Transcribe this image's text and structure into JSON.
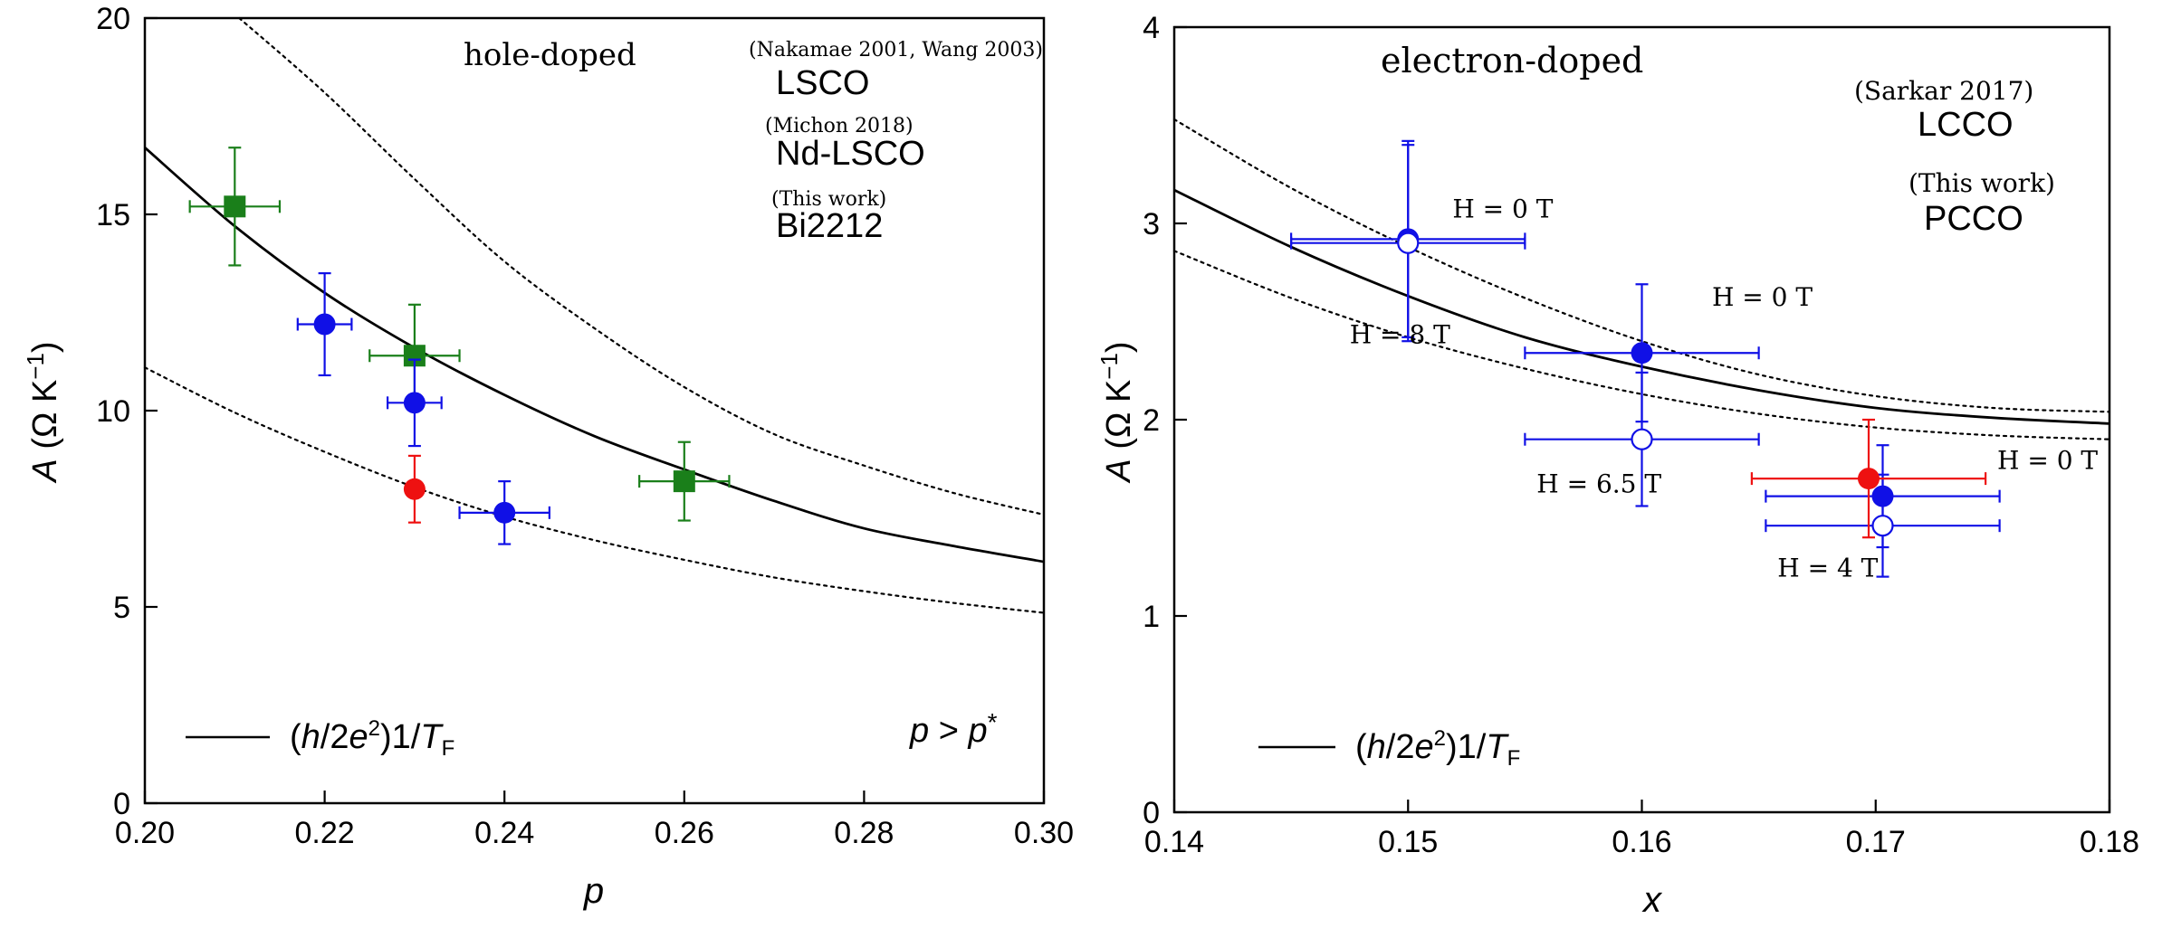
{
  "chart_data": [
    {
      "type": "scatter",
      "panel_label": "hole-doped",
      "xlabel": "p",
      "ylabel": "A (Ω K⁻¹)",
      "xlim": [
        0.2,
        0.3
      ],
      "ylim": [
        0,
        20
      ],
      "xticks": [
        "0.20",
        "0.22",
        "0.24",
        "0.26",
        "0.28",
        "0.30"
      ],
      "yticks": [
        "0",
        "5",
        "10",
        "15",
        "20"
      ],
      "legend_text": "(h/2e²)1/T_F",
      "annotation": "p > p*",
      "series": [
        {
          "name": "LSCO",
          "source": "(Nakamae 2001, Wang 2003)",
          "color": "#1a7f1a",
          "marker": "square",
          "points": [
            {
              "x": 0.21,
              "y": 15.2,
              "xerr": 0.005,
              "yerr": 1.5
            },
            {
              "x": 0.23,
              "y": 11.4,
              "xerr": 0.005,
              "yerr": 1.3
            },
            {
              "x": 0.26,
              "y": 8.2,
              "xerr": 0.005,
              "yerr": 1.0
            }
          ]
        },
        {
          "name": "Nd-LSCO",
          "source": "(Michon 2018)",
          "color": "#1010e6",
          "marker": "circle",
          "points": [
            {
              "x": 0.22,
              "y": 12.2,
              "xerr": 0.003,
              "yerr": 1.3
            },
            {
              "x": 0.23,
              "y": 10.2,
              "xerr": 0.003,
              "yerr": 1.1
            },
            {
              "x": 0.24,
              "y": 7.4,
              "xerr": 0.005,
              "yerr": 0.8
            }
          ]
        },
        {
          "name": "Bi2212",
          "source": "(This work)",
          "color": "#ee1111",
          "marker": "circle",
          "points": [
            {
              "x": 0.23,
              "y": 8.0,
              "xerr": 0,
              "yerr": 0.85
            }
          ]
        }
      ],
      "curves": {
        "solid": [
          [
            0.2,
            16.7
          ],
          [
            0.21,
            14.7
          ],
          [
            0.22,
            13.0
          ],
          [
            0.23,
            11.6
          ],
          [
            0.24,
            10.4
          ],
          [
            0.25,
            9.35
          ],
          [
            0.26,
            8.5
          ],
          [
            0.27,
            7.7
          ],
          [
            0.28,
            7.0
          ],
          [
            0.29,
            6.55
          ],
          [
            0.3,
            6.15
          ]
        ],
        "dotted_upper": [
          [
            0.2105,
            20.0
          ],
          [
            0.22,
            18.1
          ],
          [
            0.23,
            15.9
          ],
          [
            0.24,
            13.8
          ],
          [
            0.25,
            12.1
          ],
          [
            0.26,
            10.6
          ],
          [
            0.27,
            9.4
          ],
          [
            0.28,
            8.6
          ],
          [
            0.29,
            7.9
          ],
          [
            0.3,
            7.35
          ]
        ],
        "dotted_lower": [
          [
            0.2,
            11.1
          ],
          [
            0.21,
            9.95
          ],
          [
            0.22,
            8.95
          ],
          [
            0.23,
            8.05
          ],
          [
            0.24,
            7.3
          ],
          [
            0.25,
            6.7
          ],
          [
            0.26,
            6.2
          ],
          [
            0.27,
            5.75
          ],
          [
            0.28,
            5.4
          ],
          [
            0.29,
            5.1
          ],
          [
            0.3,
            4.85
          ]
        ]
      }
    },
    {
      "type": "scatter",
      "panel_label": "electron-doped",
      "xlabel": "x",
      "ylabel": "A (Ω K⁻¹)",
      "xlim": [
        0.14,
        0.18
      ],
      "ylim": [
        0,
        4
      ],
      "xticks": [
        "0.14",
        "0.15",
        "0.16",
        "0.17",
        "0.18"
      ],
      "yticks": [
        "0",
        "1",
        "2",
        "3",
        "4"
      ],
      "legend_text": "(h/2e²)1/T_F",
      "series": [
        {
          "name": "LCCO",
          "source": "(Sarkar 2017)",
          "color": "#1010e6",
          "points": [
            {
              "x": 0.15,
              "y": 2.92,
              "xerr": 0.005,
              "yerr": 0.5,
              "filled": true
            },
            {
              "x": 0.15,
              "y": 2.9,
              "xerr": 0.005,
              "yerr": 0.5,
              "filled": false
            },
            {
              "x": 0.16,
              "y": 2.34,
              "xerr": 0.005,
              "yerr": 0.35,
              "filled": true
            },
            {
              "x": 0.16,
              "y": 1.9,
              "xerr": 0.005,
              "yerr": 0.34,
              "filled": false
            },
            {
              "x": 0.1703,
              "y": 1.61,
              "xerr": 0.005,
              "yerr": 0.26,
              "filled": true
            },
            {
              "x": 0.1703,
              "y": 1.46,
              "xerr": 0.005,
              "yerr": 0.26,
              "filled": false
            }
          ]
        },
        {
          "name": "PCCO",
          "source": "(This work)",
          "color": "#ee1111",
          "points": [
            {
              "x": 0.1697,
              "y": 1.7,
              "xerr": 0.005,
              "yerr": 0.3,
              "filled": true
            }
          ]
        }
      ],
      "field_labels": [
        {
          "text": "H = 0 T",
          "x": 0.1519,
          "y": 3.03
        },
        {
          "text": "H = 8 T",
          "x": 0.1475,
          "y": 2.39
        },
        {
          "text": "H = 0 T",
          "x": 0.163,
          "y": 2.58
        },
        {
          "text": "H = 6.5 T",
          "x": 0.1555,
          "y": 1.63
        },
        {
          "text": "H = 0 T",
          "x": 0.1752,
          "y": 1.75
        },
        {
          "text": "H = 4 T",
          "x": 0.1658,
          "y": 1.2
        }
      ],
      "curves": {
        "solid": [
          [
            0.14,
            3.17
          ],
          [
            0.145,
            2.88
          ],
          [
            0.15,
            2.63
          ],
          [
            0.155,
            2.42
          ],
          [
            0.16,
            2.27
          ],
          [
            0.165,
            2.15
          ],
          [
            0.17,
            2.06
          ],
          [
            0.175,
            2.01
          ],
          [
            0.18,
            1.98
          ]
        ],
        "dotted_upper": [
          [
            0.14,
            3.53
          ],
          [
            0.145,
            3.18
          ],
          [
            0.15,
            2.88
          ],
          [
            0.155,
            2.62
          ],
          [
            0.16,
            2.4
          ],
          [
            0.165,
            2.23
          ],
          [
            0.17,
            2.12
          ],
          [
            0.175,
            2.06
          ],
          [
            0.18,
            2.04
          ]
        ],
        "dotted_lower": [
          [
            0.14,
            2.86
          ],
          [
            0.145,
            2.62
          ],
          [
            0.15,
            2.42
          ],
          [
            0.155,
            2.26
          ],
          [
            0.16,
            2.13
          ],
          [
            0.165,
            2.03
          ],
          [
            0.17,
            1.96
          ],
          [
            0.175,
            1.92
          ],
          [
            0.18,
            1.9
          ]
        ]
      }
    }
  ]
}
